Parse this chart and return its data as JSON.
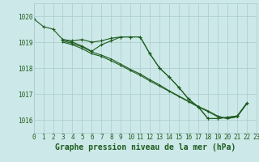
{
  "background_color": "#cce8e8",
  "grid_color": "#aacccc",
  "line_color": "#1e5c1e",
  "xlabel": "Graphe pression niveau de la mer (hPa)",
  "xlabel_fontsize": 7,
  "tick_fontsize": 5.5,
  "ylim": [
    1015.5,
    1020.5
  ],
  "xlim": [
    0,
    23
  ],
  "yticks": [
    1016,
    1017,
    1018,
    1019,
    1020
  ],
  "xticks": [
    0,
    1,
    2,
    3,
    4,
    5,
    6,
    7,
    8,
    9,
    10,
    11,
    12,
    13,
    14,
    15,
    16,
    17,
    18,
    19,
    20,
    21,
    22,
    23
  ],
  "line1_x": [
    0,
    1,
    2,
    3,
    4,
    5,
    6,
    7,
    8,
    9,
    10,
    11,
    12,
    13,
    14,
    15,
    16,
    17,
    18,
    19,
    20,
    21
  ],
  "line1_y": [
    1019.9,
    1019.6,
    1019.5,
    1019.1,
    1019.05,
    1019.1,
    1019.0,
    1019.05,
    1019.15,
    1019.2,
    1019.2,
    1019.2,
    1018.55,
    1018.0,
    1017.65,
    1017.25,
    1016.8,
    1016.5,
    1016.05,
    1016.05,
    1016.1,
    1016.15
  ],
  "line2_x": [
    3,
    4,
    5,
    6,
    7,
    8,
    9,
    10,
    11,
    12,
    13,
    14,
    15,
    16,
    17,
    18,
    19,
    20,
    21,
    22
  ],
  "line2_y": [
    1019.1,
    1019.0,
    1018.85,
    1018.65,
    1018.9,
    1019.05,
    1019.2,
    1019.2,
    1019.2,
    1018.55,
    1018.0,
    1017.65,
    1017.25,
    1016.8,
    1016.5,
    1016.05,
    1016.05,
    1016.1,
    1016.15,
    1016.65
  ],
  "line3_x": [
    3,
    4,
    5,
    6,
    7,
    8,
    9,
    10,
    11,
    12,
    13,
    14,
    15,
    16,
    17,
    18,
    19,
    20,
    21,
    22
  ],
  "line3_y": [
    1019.0,
    1018.9,
    1018.75,
    1018.55,
    1018.45,
    1018.28,
    1018.1,
    1017.9,
    1017.72,
    1017.5,
    1017.3,
    1017.1,
    1016.9,
    1016.7,
    1016.5,
    1016.32,
    1016.12,
    1016.05,
    1016.12,
    1016.62
  ],
  "line4_x": [
    3,
    4,
    5,
    6,
    7,
    8,
    9,
    10,
    11,
    12,
    13,
    14,
    15,
    16,
    17,
    18,
    19,
    20,
    21,
    22
  ],
  "line4_y": [
    1019.05,
    1018.95,
    1018.82,
    1018.62,
    1018.5,
    1018.35,
    1018.15,
    1017.95,
    1017.77,
    1017.55,
    1017.35,
    1017.12,
    1016.92,
    1016.72,
    1016.52,
    1016.35,
    1016.15,
    1016.05,
    1016.12,
    1016.62
  ]
}
